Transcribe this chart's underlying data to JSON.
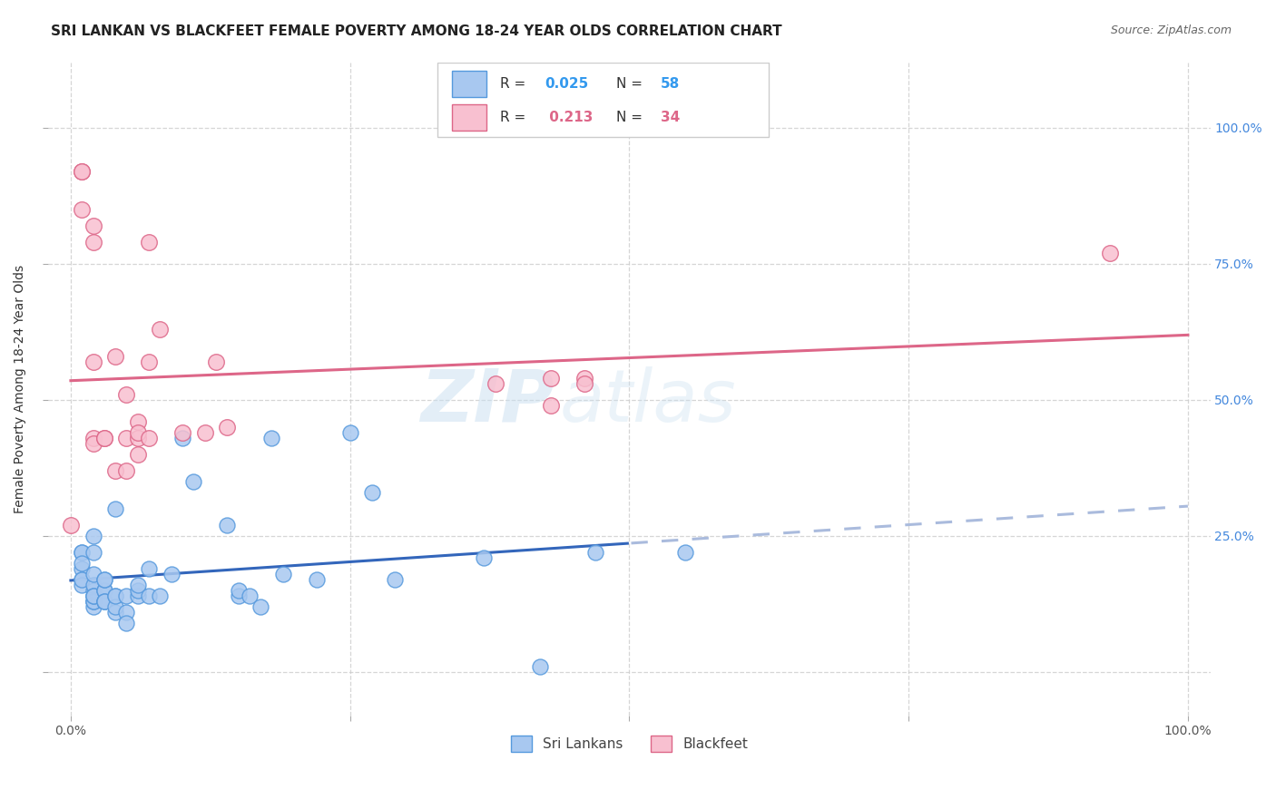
{
  "title": "SRI LANKAN VS BLACKFEET FEMALE POVERTY AMONG 18-24 YEAR OLDS CORRELATION CHART",
  "source": "Source: ZipAtlas.com",
  "ylabel": "Female Poverty Among 18-24 Year Olds",
  "xlim": [
    -0.02,
    1.02
  ],
  "ylim": [
    -0.08,
    1.12
  ],
  "sri_lankans": {
    "x": [
      0.01,
      0.01,
      0.01,
      0.01,
      0.01,
      0.01,
      0.01,
      0.02,
      0.02,
      0.02,
      0.02,
      0.02,
      0.02,
      0.02,
      0.02,
      0.02,
      0.02,
      0.02,
      0.02,
      0.03,
      0.03,
      0.03,
      0.03,
      0.03,
      0.03,
      0.03,
      0.04,
      0.04,
      0.04,
      0.04,
      0.04,
      0.05,
      0.05,
      0.05,
      0.06,
      0.06,
      0.06,
      0.07,
      0.07,
      0.08,
      0.09,
      0.1,
      0.11,
      0.14,
      0.15,
      0.15,
      0.16,
      0.17,
      0.18,
      0.19,
      0.22,
      0.25,
      0.27,
      0.29,
      0.37,
      0.42,
      0.47,
      0.55
    ],
    "y": [
      0.19,
      0.22,
      0.22,
      0.2,
      0.17,
      0.16,
      0.17,
      0.14,
      0.15,
      0.13,
      0.12,
      0.13,
      0.16,
      0.13,
      0.14,
      0.14,
      0.18,
      0.22,
      0.25,
      0.13,
      0.15,
      0.15,
      0.17,
      0.17,
      0.13,
      0.13,
      0.14,
      0.11,
      0.12,
      0.14,
      0.3,
      0.11,
      0.14,
      0.09,
      0.14,
      0.15,
      0.16,
      0.14,
      0.19,
      0.14,
      0.18,
      0.43,
      0.35,
      0.27,
      0.14,
      0.15,
      0.14,
      0.12,
      0.43,
      0.18,
      0.17,
      0.44,
      0.33,
      0.17,
      0.21,
      0.01,
      0.22,
      0.22
    ],
    "color": "#a8c8f0",
    "edge_color": "#5599dd",
    "R": 0.025,
    "N": 58,
    "trend_color": "#3366bb",
    "trend_color2": "#aabbdd"
  },
  "blackfeet": {
    "x": [
      0.0,
      0.01,
      0.01,
      0.01,
      0.02,
      0.02,
      0.02,
      0.02,
      0.02,
      0.03,
      0.03,
      0.04,
      0.04,
      0.05,
      0.05,
      0.05,
      0.06,
      0.06,
      0.06,
      0.06,
      0.07,
      0.07,
      0.07,
      0.08,
      0.1,
      0.12,
      0.13,
      0.14,
      0.38,
      0.43,
      0.43,
      0.46,
      0.46,
      0.93
    ],
    "y": [
      0.27,
      0.92,
      0.92,
      0.85,
      0.82,
      0.79,
      0.57,
      0.43,
      0.42,
      0.43,
      0.43,
      0.58,
      0.37,
      0.51,
      0.43,
      0.37,
      0.46,
      0.43,
      0.44,
      0.4,
      0.79,
      0.57,
      0.43,
      0.63,
      0.44,
      0.44,
      0.57,
      0.45,
      0.53,
      0.54,
      0.49,
      0.54,
      0.53,
      0.77
    ],
    "color": "#f8c0d0",
    "edge_color": "#dd6688",
    "R": 0.213,
    "N": 34,
    "trend_color": "#dd6688"
  },
  "watermark_zip": "ZIP",
  "watermark_atlas": "atlas",
  "background_color": "#ffffff",
  "grid_color": "#cccccc"
}
